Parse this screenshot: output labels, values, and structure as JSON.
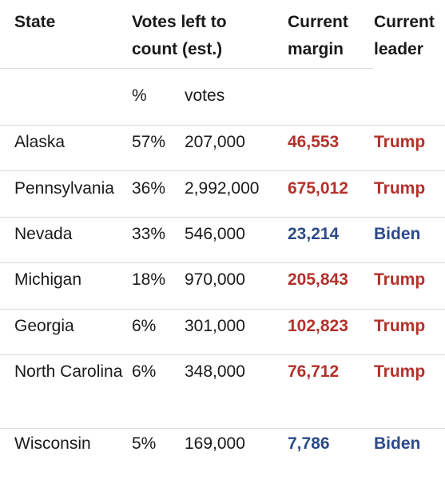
{
  "header": {
    "columns": [
      "State",
      "Votes left to count (est.)",
      "Current margin",
      "Current leader"
    ],
    "subcolumns": [
      "%",
      "votes"
    ]
  },
  "table": {
    "rows": [
      {
        "state": "Alaska",
        "percent": "57%",
        "votes": "207,000",
        "margin": "46,553",
        "leader": "Trump",
        "color": "#b3312b"
      },
      {
        "state": "Pennsylvania",
        "percent": "36%",
        "votes": "2,992,000",
        "margin": "675,012",
        "leader": "Trump",
        "color": "#b3312b"
      },
      {
        "state": "Nevada",
        "percent": "33%",
        "votes": "546,000",
        "margin": "23,214",
        "leader": "Biden",
        "color": "#2d4a8a"
      },
      {
        "state": "Michigan",
        "percent": "18%",
        "votes": "970,000",
        "margin": "205,843",
        "leader": "Trump",
        "color": "#b3312b"
      },
      {
        "state": "Georgia",
        "percent": "6%",
        "votes": "301,000",
        "margin": "102,823",
        "leader": "Trump",
        "color": "#b3312b"
      },
      {
        "state": "North Carolina",
        "percent": "6%",
        "votes": "348,000",
        "margin": "76,712",
        "leader": "Trump",
        "color": "#b3312b"
      },
      {
        "state": "Wisconsin",
        "percent": "5%",
        "votes": "169,000",
        "margin": "7,786",
        "leader": "Biden",
        "color": "#2d4a8a"
      }
    ]
  }
}
